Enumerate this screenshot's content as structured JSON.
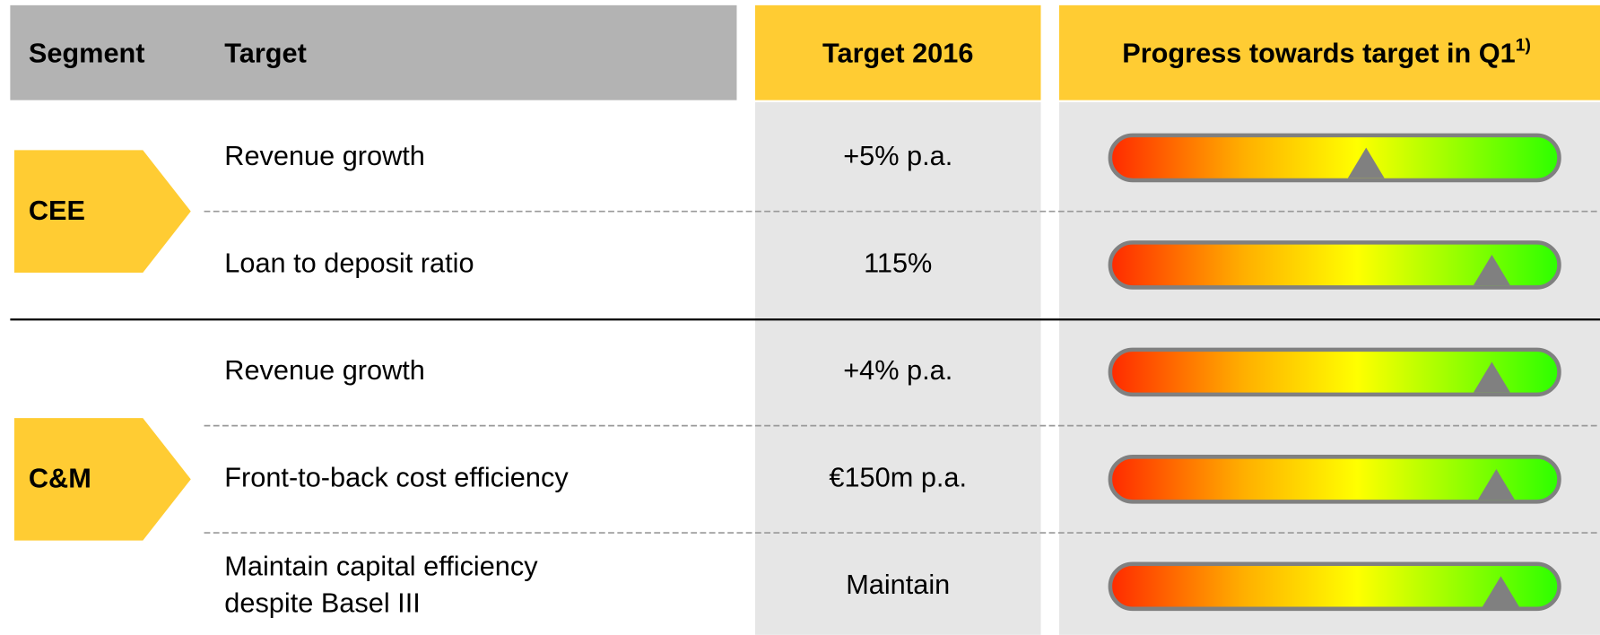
{
  "header": {
    "segment": "Segment",
    "target": "Target",
    "target_2016": "Target 2016",
    "progress": "Progress towards target in Q1",
    "progress_note": "1)"
  },
  "segments": [
    {
      "label": "CEE",
      "rows": [
        {
          "target": [
            "Revenue growth"
          ],
          "value": "+5% p.a.",
          "progress": 57
        },
        {
          "target": [
            "Loan to deposit ratio"
          ],
          "value": "115%",
          "progress": 85
        }
      ]
    },
    {
      "label": "C&M",
      "rows": [
        {
          "target": [
            "Revenue growth"
          ],
          "value": "+4% p.a.",
          "progress": 85
        },
        {
          "target": [
            "Front-to-back cost efficiency"
          ],
          "value": "€150m p.a.",
          "progress": 86
        },
        {
          "target": [
            "Maintain capital efficiency",
            "despite Basel III"
          ],
          "value": "Maintain",
          "progress": 87
        }
      ]
    }
  ]
}
